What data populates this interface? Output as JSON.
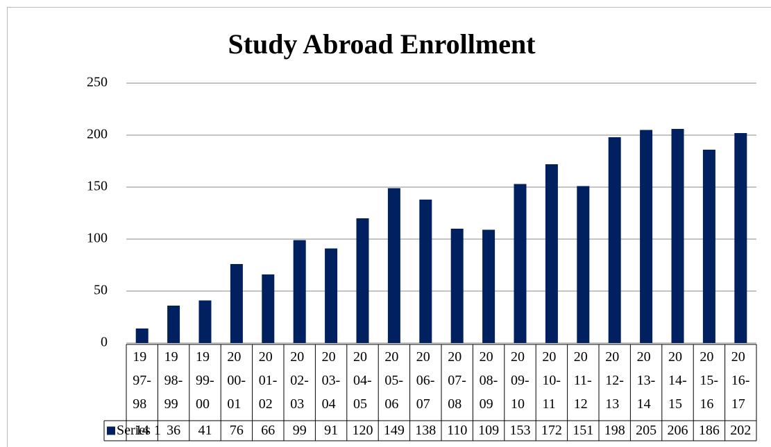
{
  "chart_data": {
    "type": "bar",
    "title": "Study Abroad Enrollment",
    "categories": [
      "1997-98",
      "1998-99",
      "1999-00",
      "2000-01",
      "2001-02",
      "2002-03",
      "2003-04",
      "2004-05",
      "2005-06",
      "2006-07",
      "2007-08",
      "2008-09",
      "2009-10",
      "2010-11",
      "2011-12",
      "2012-13",
      "2013-14",
      "2014-15",
      "2015-16",
      "2016-17"
    ],
    "series": [
      {
        "name": "Series 1",
        "color": "#002060",
        "values": [
          14,
          36,
          41,
          76,
          66,
          99,
          91,
          120,
          149,
          138,
          110,
          109,
          153,
          172,
          151,
          198,
          205,
          206,
          186,
          202
        ]
      }
    ],
    "ylim": [
      0,
      250
    ],
    "yticks": [
      0,
      50,
      100,
      150,
      200,
      250
    ],
    "grid": true,
    "legend": "data-table"
  }
}
